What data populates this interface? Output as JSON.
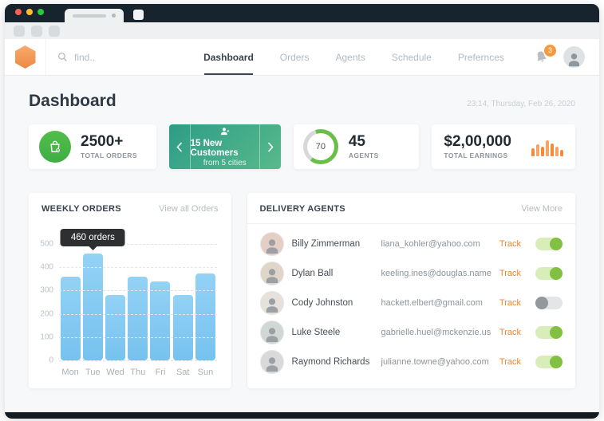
{
  "nav": {
    "search_placeholder": "find..",
    "items": [
      {
        "label": "Dashboard",
        "active": true
      },
      {
        "label": "Orders",
        "active": false
      },
      {
        "label": "Agents",
        "active": false
      },
      {
        "label": "Schedule",
        "active": false
      },
      {
        "label": "Prefernces",
        "active": false
      }
    ],
    "notification_count": "3"
  },
  "page": {
    "title": "Dashboard",
    "timestamp": "23:14, Thursday, Feb 26, 2020"
  },
  "stats": {
    "orders": {
      "value": "2500+",
      "label": "TOTAL ORDERS",
      "icon": "shopping-bag-check-icon"
    },
    "customers": {
      "title": "15 New Customers",
      "subtitle": "from 5 cities",
      "icon": "person-add-icon"
    },
    "agents": {
      "ring_value": "70",
      "value": "45",
      "label": "AGENTS"
    },
    "earnings": {
      "value": "$2,00,000",
      "label": "TOTAL EARNINGS",
      "icon": "mini-bar-chart-icon"
    }
  },
  "weekly_orders": {
    "title": "WEEKLY ORDERS",
    "link": "View all Orders"
  },
  "chart_data": {
    "type": "bar",
    "title": "WEEKLY ORDERS",
    "categories": [
      "Mon",
      "Tue",
      "Wed",
      "Thu",
      "Fri",
      "Sat",
      "Sun"
    ],
    "values": [
      360,
      460,
      280,
      360,
      340,
      280,
      375
    ],
    "ylim": [
      0,
      500
    ],
    "yticks": [
      0,
      100,
      200,
      300,
      400,
      500
    ],
    "grid": "horizontal-dashed",
    "bar_color": "#7EC6F2",
    "tooltip": {
      "text": "460 orders",
      "category": "Tue",
      "index": 1
    }
  },
  "delivery_agents": {
    "title": "DELIVERY AGENTS",
    "link": "View More",
    "track_label": "Track",
    "rows": [
      {
        "name": "Billy Zimmerman",
        "email": "liana_kohler@yahoo.com",
        "tracked": true
      },
      {
        "name": "Dylan Ball",
        "email": "keeling.ines@douglas.name",
        "tracked": true
      },
      {
        "name": "Cody Johnston",
        "email": "hackett.elbert@gmail.com",
        "tracked": false
      },
      {
        "name": "Luke Steele",
        "email": "gabrielle.huel@mckenzie.us",
        "tracked": true
      },
      {
        "name": "Raymond Richards",
        "email": "julianne.towne@yahoo.com",
        "tracked": true
      }
    ]
  },
  "colors": {
    "chrome_dark": "#17242E",
    "brand_orange": "#F49A5B",
    "accent_orange": "#F0862C",
    "badge_orange": "#F79A3E",
    "success_green": "#46B446",
    "ring_green": "#68BE46",
    "toggle_on_green": "#82C043",
    "teal_card_gradient": [
      "#2D9C86",
      "#58BA8C"
    ],
    "bar_blue": "#7EC6F2"
  }
}
